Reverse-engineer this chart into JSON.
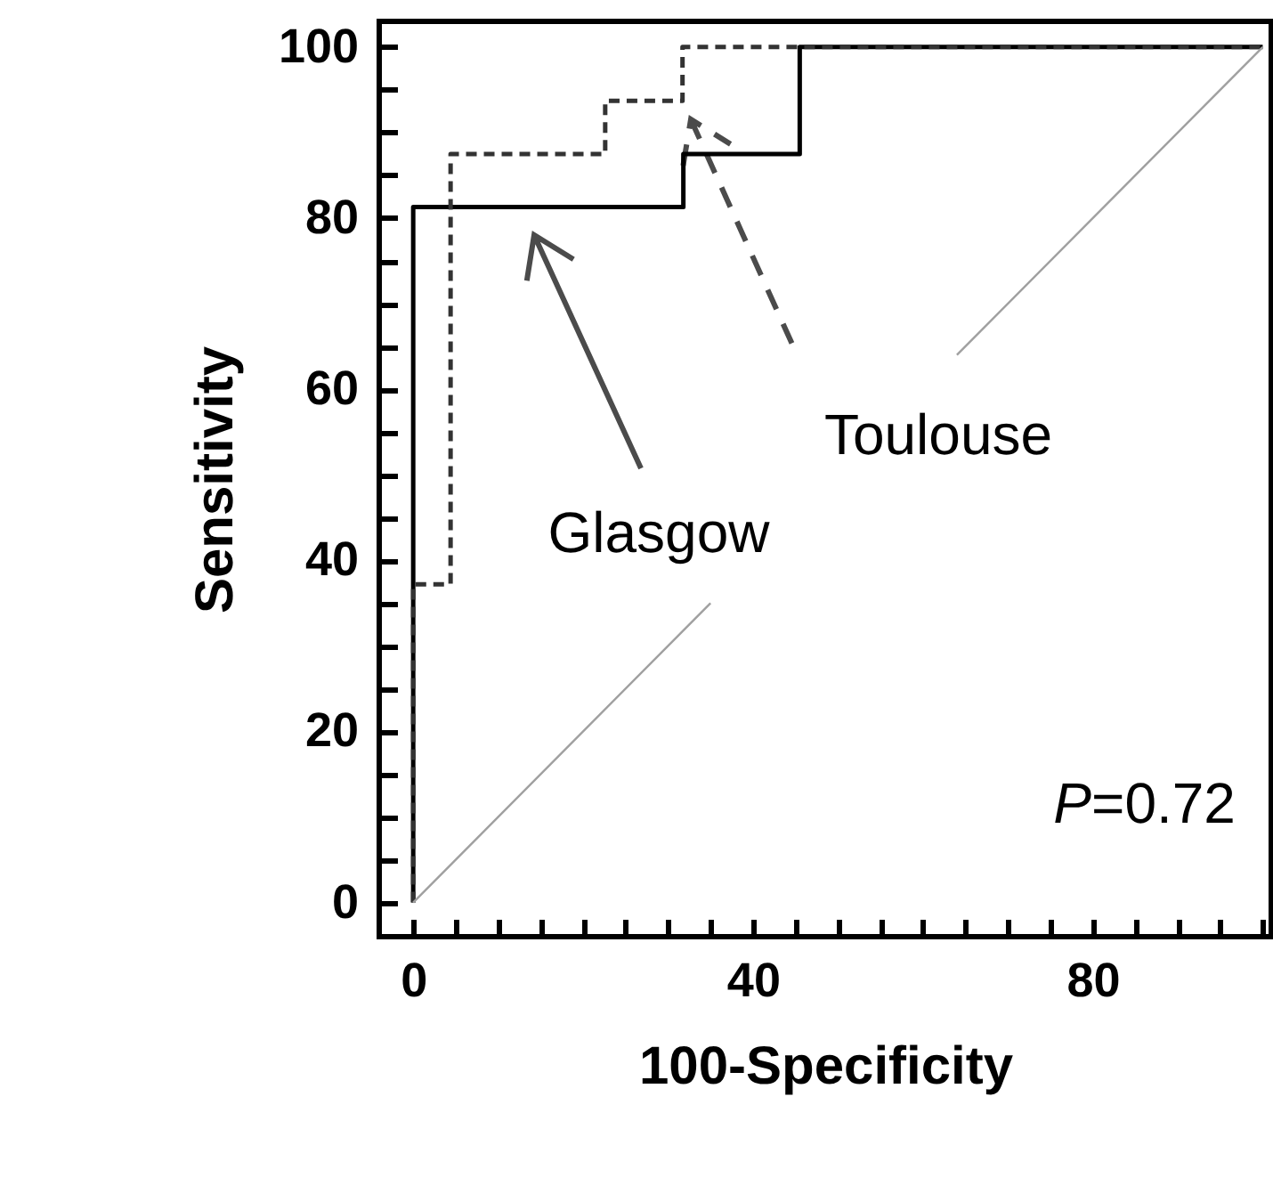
{
  "chart_data": {
    "type": "step",
    "xlabel": "100-Specificity",
    "ylabel": "Sensitivity",
    "xlim": [
      -4,
      101
    ],
    "ylim": [
      -4,
      103
    ],
    "xticks": [
      0,
      {
        "value": 5,
        "label": null
      },
      {
        "value": 10,
        "label": null
      },
      {
        "value": 15,
        "label": null
      },
      {
        "value": 20,
        "label": null
      },
      {
        "value": 25,
        "label": null
      },
      {
        "value": 30,
        "label": null
      },
      {
        "value": 35,
        "label": null
      },
      40,
      {
        "value": 45,
        "label": null
      },
      {
        "value": 50,
        "label": null
      },
      {
        "value": 55,
        "label": null
      },
      {
        "value": 60,
        "label": null
      },
      {
        "value": 65,
        "label": null
      },
      {
        "value": 70,
        "label": null
      },
      {
        "value": 75,
        "label": null
      },
      80,
      {
        "value": 85,
        "label": null
      },
      {
        "value": 90,
        "label": null
      },
      {
        "value": 95,
        "label": null
      },
      {
        "value": 100,
        "label": null
      }
    ],
    "yticks": [
      0,
      {
        "value": 5,
        "label": null
      },
      {
        "value": 10,
        "label": null
      },
      {
        "value": 15,
        "label": null
      },
      20,
      {
        "value": 25,
        "label": null
      },
      {
        "value": 30,
        "label": null
      },
      {
        "value": 35,
        "label": null
      },
      40,
      {
        "value": 45,
        "label": null
      },
      {
        "value": 50,
        "label": null
      },
      {
        "value": 55,
        "label": null
      },
      60,
      {
        "value": 65,
        "label": null
      },
      {
        "value": 70,
        "label": null
      },
      {
        "value": 75,
        "label": null
      },
      80,
      {
        "value": 85,
        "label": null
      },
      {
        "value": 90,
        "label": null
      },
      {
        "value": 95,
        "label": null
      },
      100
    ],
    "marker": "none",
    "series": [
      {
        "color": "#000000",
        "line_style": "solid",
        "x": [
          0,
          0,
          31.8,
          45.5,
          100
        ],
        "values": [
          0,
          81.3,
          87.5,
          100,
          100
        ]
      },
      {
        "color": "#333333",
        "line_style": "dashed",
        "x": [
          0,
          0,
          4.4,
          22.6,
          31.7,
          100
        ],
        "values": [
          0,
          37.2,
          87.5,
          93.7,
          100,
          100
        ]
      },
      {
        "type": "line",
        "color": "#a0a0a0",
        "line_style": "solid",
        "x": [
          0,
          35,
          49,
          64,
          100
        ],
        "values": [
          0,
          35,
          null,
          64,
          100
        ]
      }
    ],
    "annotations": [
      "Glasgow",
      "Toulouse",
      "P=0.72"
    ]
  }
}
